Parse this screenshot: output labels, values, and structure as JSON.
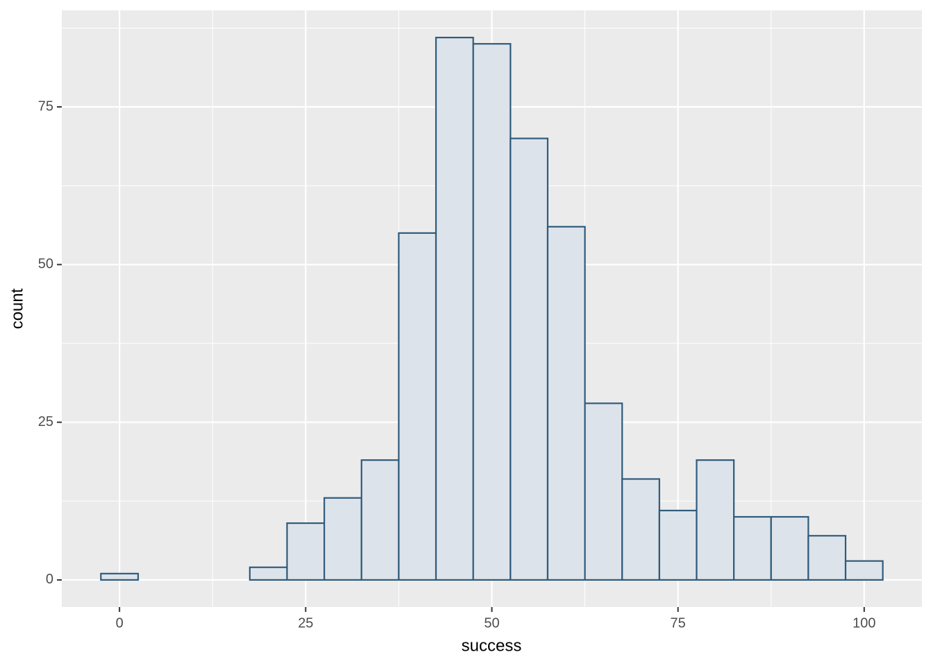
{
  "chart_data": {
    "type": "histogram",
    "x_label": "success",
    "y_label": "count",
    "bins": [
      -2.5,
      2.5,
      7.5,
      12.5,
      17.5,
      22.5,
      27.5,
      32.5,
      37.5,
      42.5,
      47.5,
      52.5,
      57.5,
      62.5,
      67.5,
      72.5,
      77.5,
      82.5,
      87.5,
      92.5,
      97.5,
      102.5
    ],
    "values": [
      1,
      0,
      0,
      0,
      2,
      9,
      13,
      19,
      55,
      86,
      85,
      70,
      56,
      28,
      16,
      11,
      19,
      10,
      10,
      7,
      3
    ],
    "fill": "#dde3ea",
    "color": "#2f5b7c",
    "xlim": [
      -7.75,
      107.75
    ],
    "xticks": [
      0,
      25,
      50,
      75,
      100
    ],
    "x_minor_ticks": [
      12.5,
      37.5,
      62.5,
      87.5
    ],
    "ylim": [
      -4.3,
      90.3
    ],
    "yticks": [
      0,
      25,
      50,
      75
    ],
    "y_minor_ticks": [
      12.5,
      37.5,
      62.5,
      87.5
    ],
    "grid": true
  }
}
